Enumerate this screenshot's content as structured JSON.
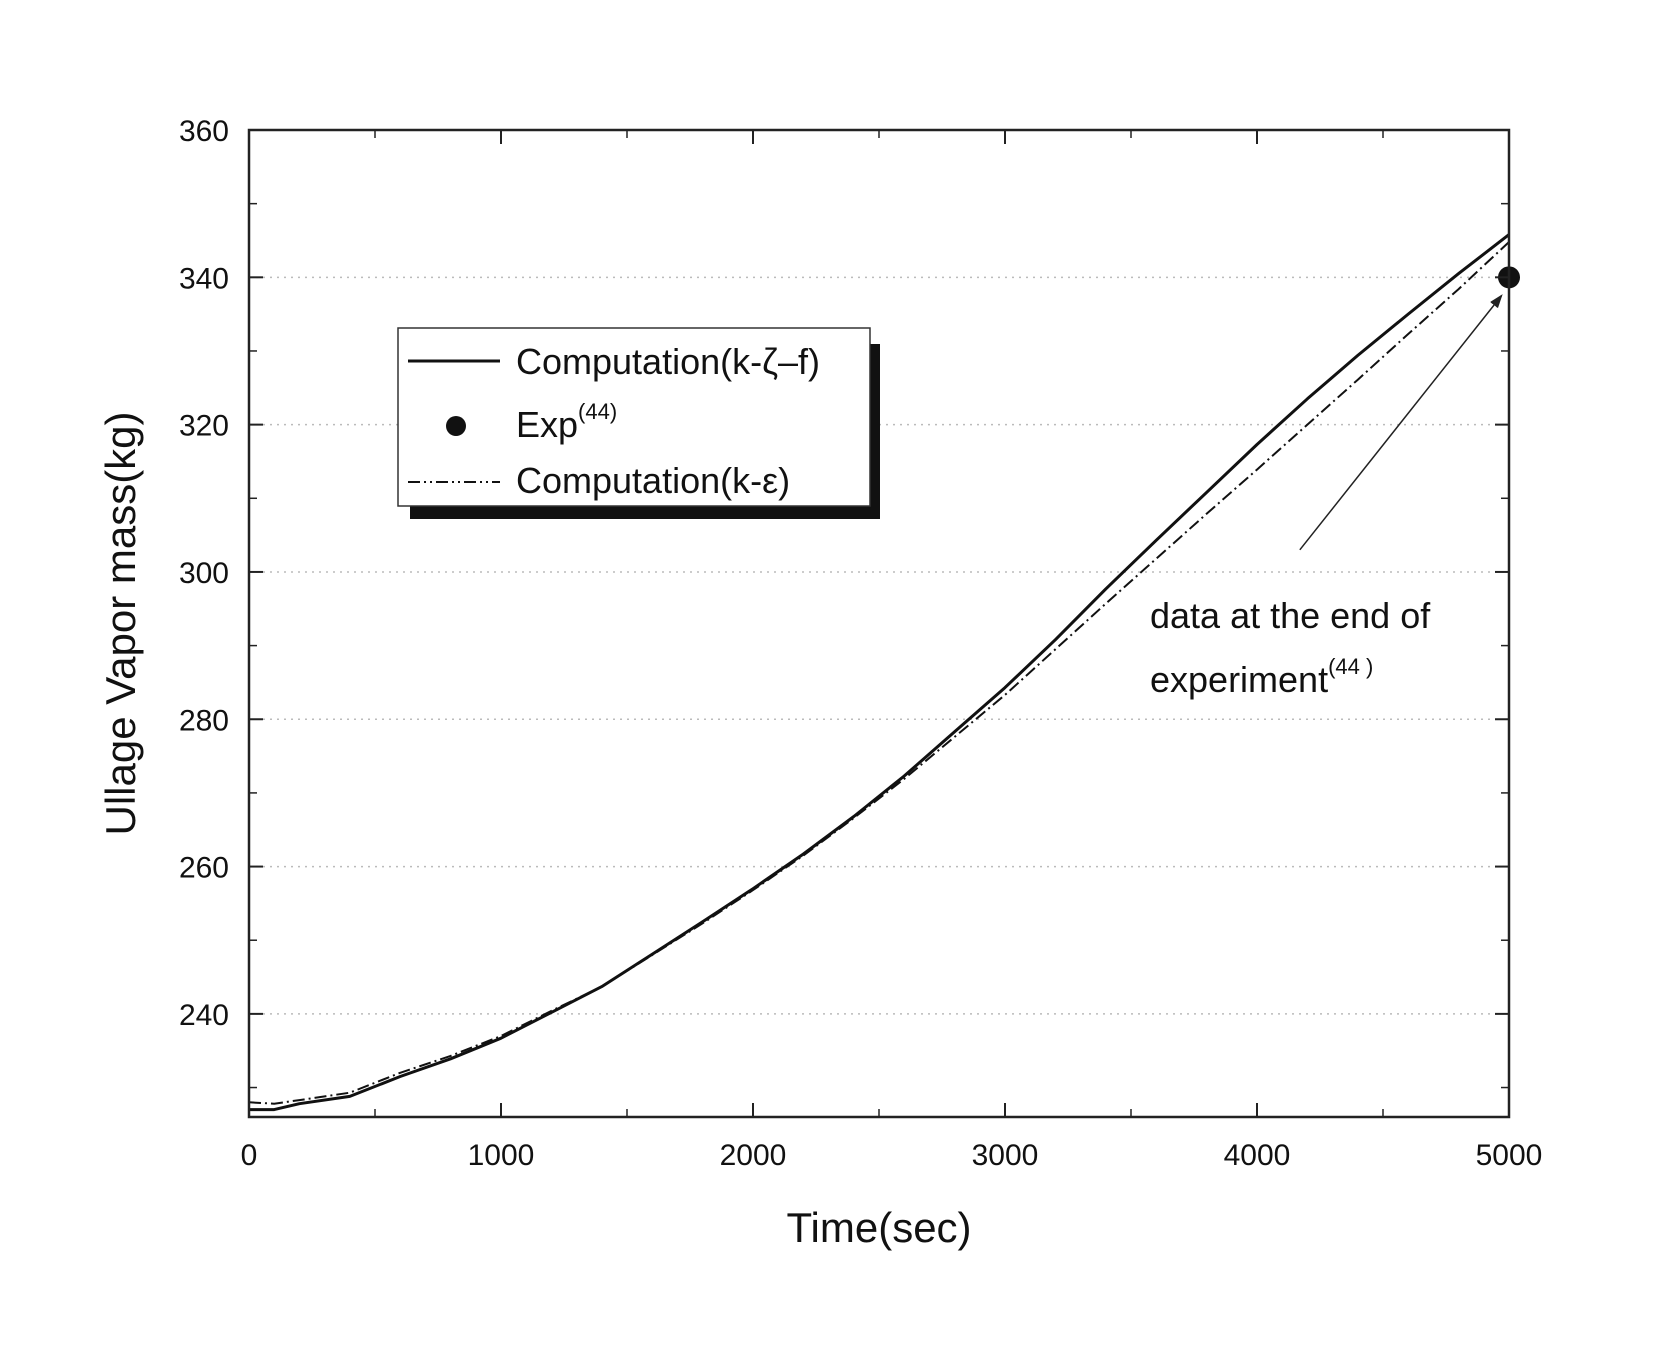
{
  "chart_data": {
    "type": "line",
    "title": "",
    "xlabel": "Time(sec)",
    "ylabel": "Ullage Vapor mass(kg)",
    "xlim": [
      0,
      5000
    ],
    "ylim": [
      226,
      360
    ],
    "xticks": [
      0,
      1000,
      2000,
      3000,
      4000,
      5000
    ],
    "xtick_labels": [
      "0",
      "1000",
      "2000",
      "3000",
      "4000",
      "5000"
    ],
    "yticks": [
      240,
      260,
      280,
      300,
      320,
      340,
      360
    ],
    "ytick_labels": [
      "240",
      "260",
      "280",
      "300",
      "320",
      "340",
      "360"
    ],
    "grid": "horizontal dotted",
    "legend_position": "upper-left",
    "series": [
      {
        "name": "Computation(k-ζ–f)",
        "style": "solid",
        "x": [
          0,
          100,
          200,
          400,
          600,
          800,
          1000,
          1200,
          1400,
          1600,
          1800,
          2000,
          2200,
          2400,
          2600,
          2800,
          3000,
          3200,
          3400,
          3600,
          3800,
          4000,
          4200,
          4400,
          4600,
          4800,
          5000
        ],
        "y": [
          227,
          227,
          227.8,
          228.8,
          231.5,
          233.9,
          236.7,
          240.2,
          243.7,
          248.1,
          252.5,
          257,
          261.7,
          266.8,
          272.3,
          278.3,
          284.3,
          290.8,
          297.7,
          304.3,
          310.8,
          317.3,
          323.5,
          329.4,
          335,
          340.5,
          345.8
        ]
      },
      {
        "name": "Exp",
        "name_sup": "(44)",
        "style": "marker",
        "x": [
          5000
        ],
        "y": [
          340
        ]
      },
      {
        "name": "Computation(k-ε)",
        "style": "dashdot",
        "x": [
          0,
          100,
          200,
          400,
          600,
          800,
          1000,
          1200,
          1400,
          1600,
          1800,
          2000,
          2200,
          2400,
          2600,
          2800,
          3000,
          3200,
          3400,
          3600,
          3800,
          4000,
          4200,
          4400,
          4600,
          4800,
          5000
        ],
        "y": [
          228,
          227.8,
          228.3,
          229.3,
          232,
          234.3,
          237,
          240.4,
          243.7,
          248,
          252.3,
          256.8,
          261.5,
          266.6,
          271.9,
          277.6,
          283.3,
          289.5,
          295.7,
          301.8,
          307.9,
          313.9,
          320,
          326.1,
          332.3,
          338.4,
          344.8
        ]
      }
    ],
    "annotations": [
      {
        "text_lines": [
          "data at the end of",
          "experiment"
        ],
        "sup": "(44 )",
        "points_to": {
          "x": 4970,
          "y": 337.5
        },
        "anchor": {
          "x": 4170,
          "y": 303
        }
      }
    ]
  }
}
